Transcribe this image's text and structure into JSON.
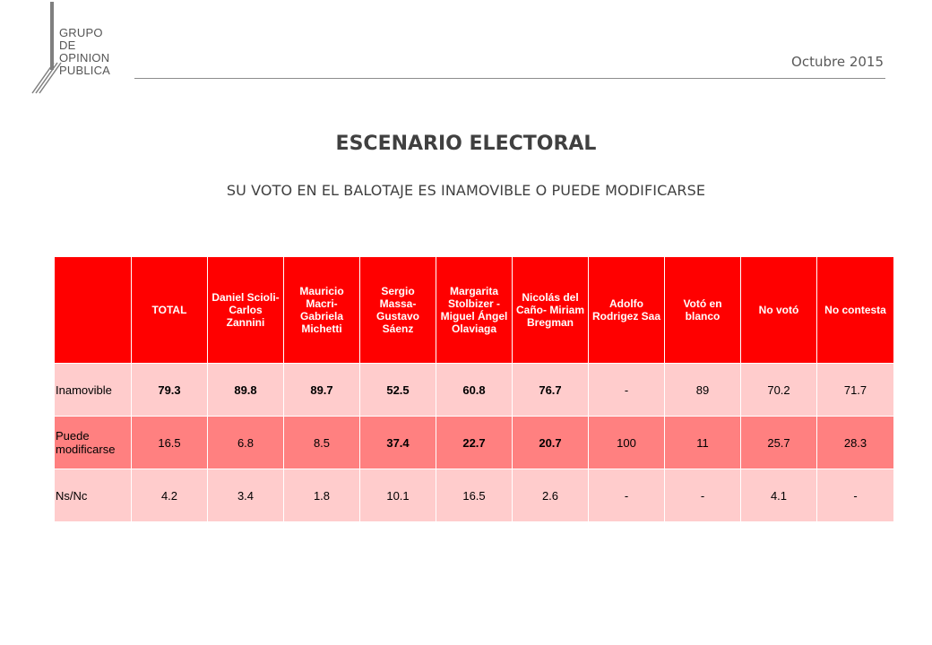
{
  "logo": {
    "lines": [
      "GRUPO",
      "DE",
      "OPINION",
      "PUBLICA"
    ]
  },
  "header": {
    "date": "Octubre 2015"
  },
  "title": "ESCENARIO ELECTORAL",
  "subtitle": "SU VOTO EN EL BALOTAJE ES INAMOVIBLE O PUEDE MODIFICARSE",
  "table": {
    "columns": [
      "",
      "TOTAL",
      "Daniel Scioli- Carlos Zannini",
      "Mauricio Macri- Gabriela Michetti",
      "Sergio Massa- Gustavo Sáenz",
      "Margarita Stolbizer - Miguel Ángel Olaviaga",
      "Nicolás del Caño- Miriam Bregman",
      "Adolfo Rodrigez Saa",
      "Votó en blanco",
      "No votó",
      "No contesta"
    ],
    "rows": [
      {
        "label": "Inamovible",
        "values": [
          "79.3",
          "89.8",
          "89.7",
          "52.5",
          "60.8",
          "76.7",
          "-",
          "89",
          "70.2",
          "71.7"
        ]
      },
      {
        "label": "Puede modificarse",
        "values": [
          "16.5",
          "6.8",
          "8.5",
          "37.4",
          "22.7",
          "20.7",
          "100",
          "11",
          "25.7",
          "28.3"
        ]
      },
      {
        "label": "Ns/Nc",
        "values": [
          "4.2",
          "3.4",
          "1.8",
          "10.1",
          "16.5",
          "2.6",
          "-",
          "-",
          "4.1",
          "-"
        ]
      }
    ]
  },
  "colors": {
    "header_red": "#ff0000",
    "row_light": "#ffcccc",
    "row_medium": "#ff8080"
  }
}
